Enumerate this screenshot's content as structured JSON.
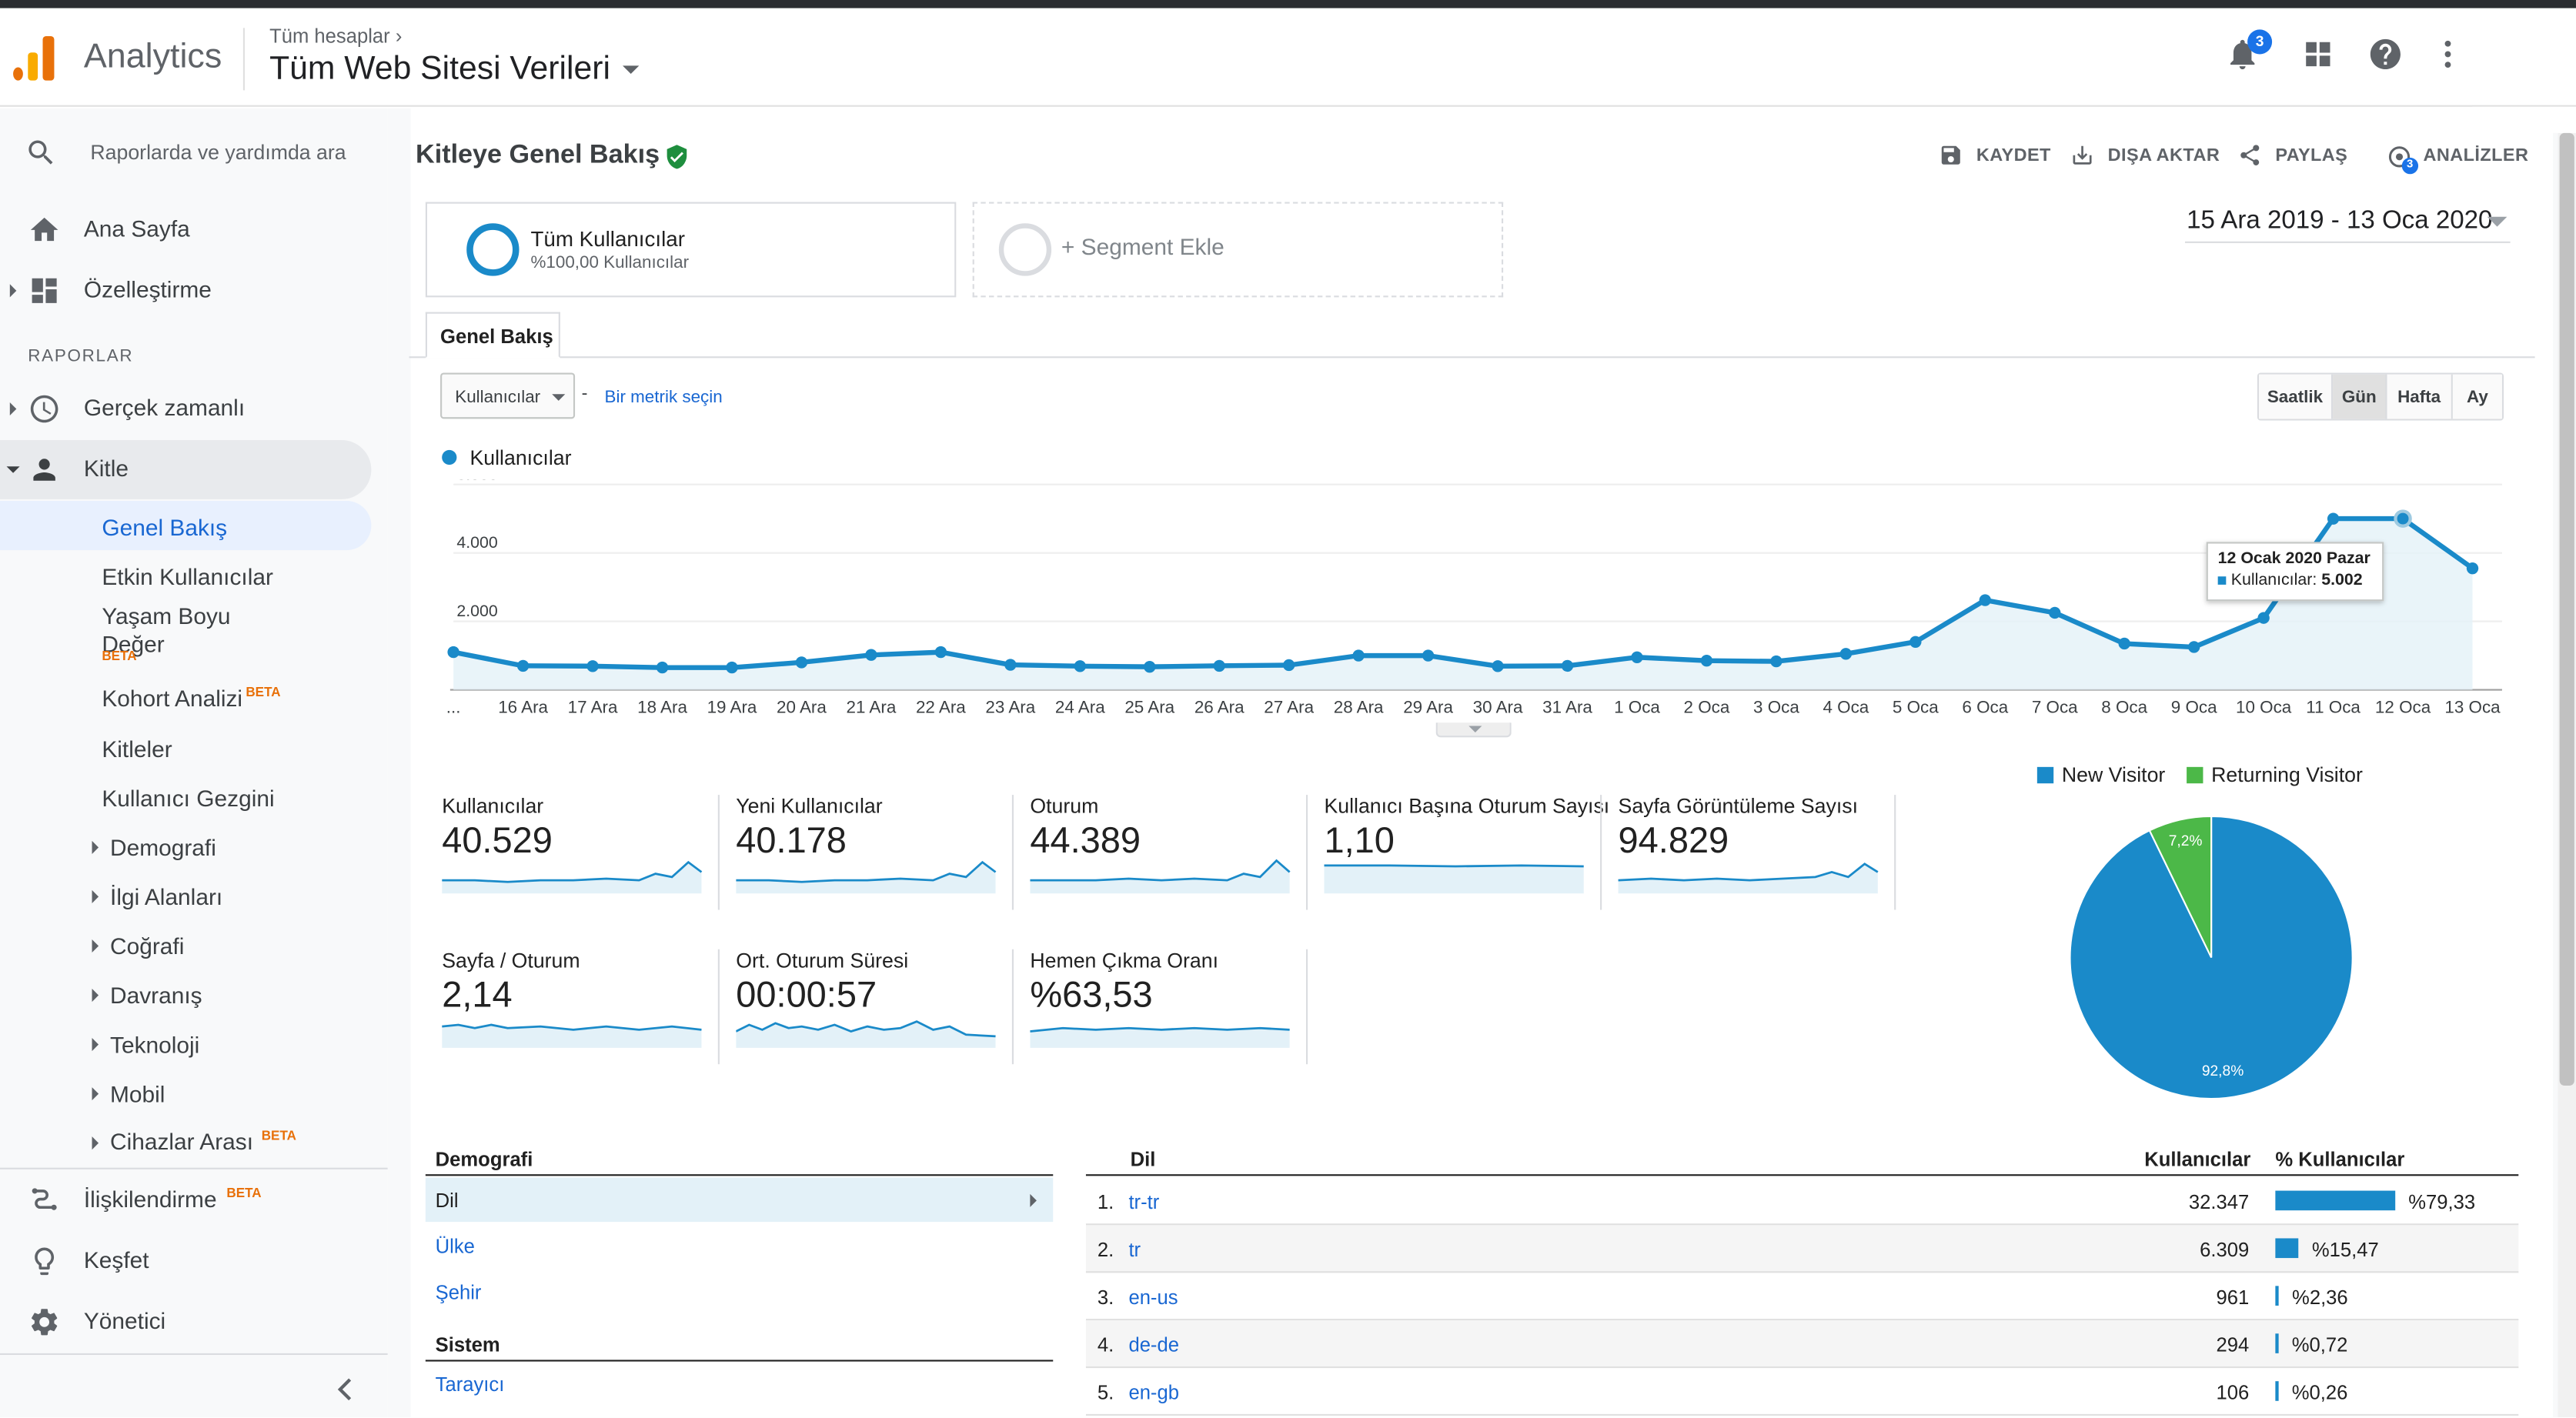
{
  "header": {
    "app_name": "Analytics",
    "breadcrumb": "Tüm hesaplar",
    "view_title": "Tüm Web Sitesi Verileri",
    "notification_count": "3"
  },
  "sidebar": {
    "search_placeholder": "Raporlarda ve yardımda ara",
    "home": "Ana Sayfa",
    "customization": "Özelleştirme",
    "reports_label": "RAPORLAR",
    "realtime": "Gerçek zamanlı",
    "audience": "Kitle",
    "audience_items": {
      "overview": "Genel Bakış",
      "active_users": "Etkin Kullanıcılar",
      "lifetime_value_1": "Yaşam Boyu",
      "lifetime_value_2": "Değer",
      "cohort": "Kohort Analizi",
      "audiences": "Kitleler",
      "user_explorer": "Kullanıcı Gezgini",
      "demographics": "Demografi",
      "interests": "İlgi Alanları",
      "geo": "Coğrafi",
      "behavior": "Davranış",
      "technology": "Teknoloji",
      "mobile": "Mobil",
      "cross_device": "Cihazlar Arası"
    },
    "beta": "BETA",
    "attribution": "İlişkilendirme",
    "discover": "Keşfet",
    "admin": "Yönetici"
  },
  "toolbar": {
    "page_title": "Kitleye Genel Bakış",
    "save": "KAYDET",
    "export": "DIŞA AKTAR",
    "share": "PAYLAŞ",
    "insights": "ANALİZLER",
    "insights_badge": "3"
  },
  "segments": {
    "all_users_title": "Tüm Kullanıcılar",
    "all_users_sub": "%100,00 Kullanıcılar",
    "add_segment": "+ Segment Ekle"
  },
  "date_range": "15 Ara 2019 - 13 Oca 2020",
  "tabs": {
    "overview": "Genel Bakış"
  },
  "controls": {
    "metric_select": "Kullanıcılar",
    "separator": "-",
    "choose_metric": "Bir metrik seçin",
    "granularity": [
      "Saatlik",
      "Gün",
      "Hafta",
      "Ay"
    ],
    "granularity_selected": "Gün"
  },
  "chart_data": {
    "type": "line",
    "series": [
      {
        "name": "Kullanıcılar",
        "values": [
          1100,
          700,
          690,
          650,
          650,
          800,
          1020,
          1100,
          730,
          690,
          670,
          700,
          720,
          1000,
          1000,
          690,
          700,
          950,
          850,
          830,
          1050,
          1400,
          2620,
          2250,
          1350,
          1250,
          2100,
          5000,
          5002,
          3550
        ]
      }
    ],
    "x": [
      "...",
      "16 Ara",
      "17 Ara",
      "18 Ara",
      "19 Ara",
      "20 Ara",
      "21 Ara",
      "22 Ara",
      "23 Ara",
      "24 Ara",
      "25 Ara",
      "26 Ara",
      "27 Ara",
      "28 Ara",
      "29 Ara",
      "30 Ara",
      "31 Ara",
      "1 Oca",
      "2 Oca",
      "3 Oca",
      "4 Oca",
      "5 Oca",
      "6 Oca",
      "7 Oca",
      "8 Oca",
      "9 Oca",
      "10 Oca",
      "11 Oca",
      "12 Oca",
      "13 Oca"
    ],
    "y_ticks": [
      "2.000",
      "4.000",
      "6.000"
    ],
    "ylim": [
      0,
      6000
    ],
    "color": "#1a8ac9",
    "tooltip": {
      "title": "12 Ocak 2020 Pazar",
      "label": "Kullanıcılar:",
      "value": "5.002"
    }
  },
  "kpis": [
    {
      "name": "Kullanıcılar",
      "value": "40.529"
    },
    {
      "name": "Yeni Kullanıcılar",
      "value": "40.178"
    },
    {
      "name": "Oturum",
      "value": "44.389"
    },
    {
      "name": "Kullanıcı Başına Oturum Sayısı",
      "value": "1,10"
    },
    {
      "name": "Sayfa Görüntüleme Sayısı",
      "value": "94.829"
    },
    {
      "name": "Sayfa / Oturum",
      "value": "2,14"
    },
    {
      "name": "Ort. Oturum Süresi",
      "value": "00:00:57"
    },
    {
      "name": "Hemen Çıkma Oranı",
      "value": "%63,53"
    }
  ],
  "pie": {
    "legend": [
      {
        "name": "New Visitor",
        "color": "#1a8ac9",
        "value": 92.8,
        "label": "92,8%"
      },
      {
        "name": "Returning Visitor",
        "color": "#4cb848",
        "value": 7.2,
        "label": "7,2%"
      }
    ]
  },
  "demographics": {
    "heading": "Demografi",
    "items": [
      "Dil",
      "Ülke",
      "Şehir"
    ],
    "system_heading": "Sistem",
    "system_items": [
      "Tarayıcı"
    ]
  },
  "language_table": {
    "col_language": "Dil",
    "col_users": "Kullanıcılar",
    "col_pct": "% Kullanıcılar",
    "rows": [
      {
        "idx": "1.",
        "lang": "tr-tr",
        "users": "32.347",
        "pct": "%79,33",
        "share": 79.33
      },
      {
        "idx": "2.",
        "lang": "tr",
        "users": "6.309",
        "pct": "%15,47",
        "share": 15.47
      },
      {
        "idx": "3.",
        "lang": "en-us",
        "users": "961",
        "pct": "%2,36",
        "share": 2.36
      },
      {
        "idx": "4.",
        "lang": "de-de",
        "users": "294",
        "pct": "%0,72",
        "share": 0.72
      },
      {
        "idx": "5.",
        "lang": "en-gb",
        "users": "106",
        "pct": "%0,26",
        "share": 0.26
      }
    ]
  }
}
